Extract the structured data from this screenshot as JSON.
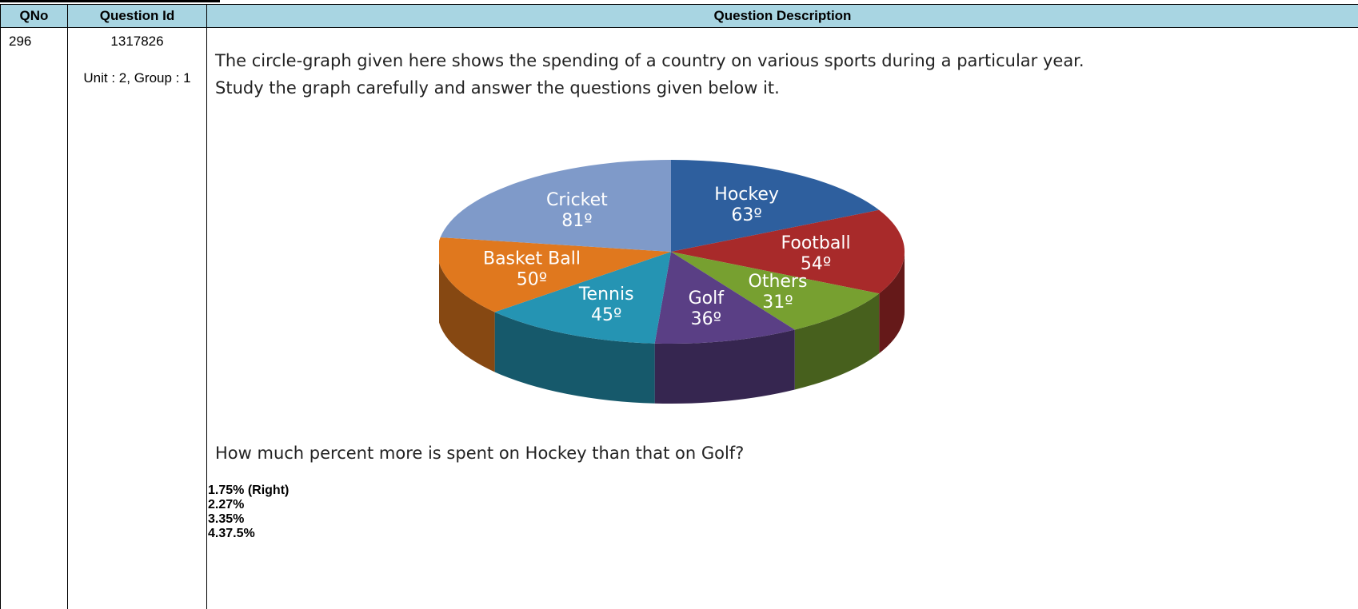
{
  "table": {
    "headers": [
      "QNo",
      "Question Id",
      "Question Description"
    ],
    "qno": "296",
    "question_id": "1317826",
    "unit_group": "Unit : 2, Group : 1"
  },
  "question": {
    "intro_line1": "The circle-graph given here shows the spending of a country on various sports during a particular year.",
    "intro_line2": "Study the graph carefully and answer the questions given below it.",
    "text": "How much percent more is spent on Hockey than that on Golf?",
    "options": [
      "1.75% (Right)",
      "2.27%",
      "3.35%",
      "4.37.5%"
    ]
  },
  "chart_data": {
    "type": "pie",
    "slices": [
      {
        "label": "Hockey",
        "value": 63,
        "display": "63º",
        "color": "#2e5f9e"
      },
      {
        "label": "Football",
        "value": 54,
        "display": "54º",
        "color": "#a82a2a"
      },
      {
        "label": "Others",
        "value": 31,
        "display": "31º",
        "color": "#77a030"
      },
      {
        "label": "Golf",
        "value": 36,
        "display": "36º",
        "color": "#5a3f85"
      },
      {
        "label": "Tennis",
        "value": 45,
        "display": "45º",
        "color": "#2594b3"
      },
      {
        "label": "Basket Ball",
        "value": 50,
        "display": "50º",
        "color": "#e0781e"
      },
      {
        "label": "Cricket",
        "value": 81,
        "display": "81º",
        "color": "#7f9ac9"
      }
    ]
  }
}
